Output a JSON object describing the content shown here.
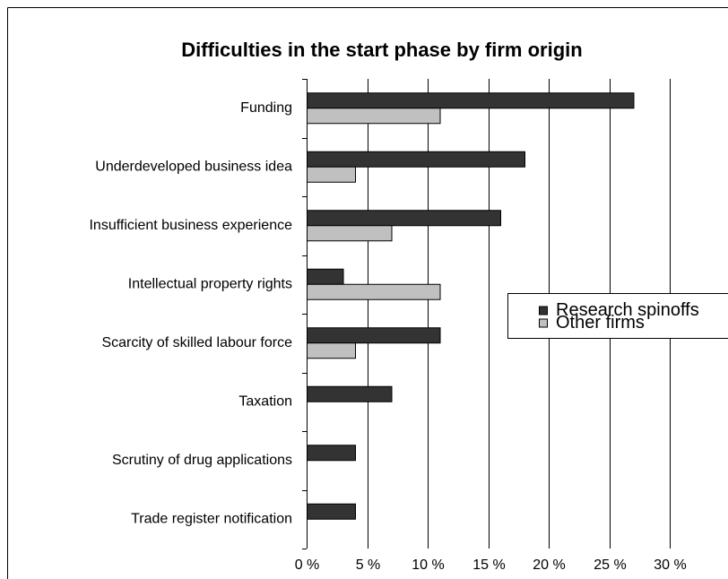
{
  "chart_data": {
    "type": "barh",
    "title": "Difficulties in the start phase by firm origin",
    "categories": [
      "Funding",
      "Underdeveloped business idea",
      "Insufficient business experience",
      "Intellectual property rights",
      "Scarcity of skilled labour force",
      "Taxation",
      "Scrutiny of drug applications",
      "Trade register notification"
    ],
    "series": [
      {
        "name": "Research spinoffs",
        "color": "#333333",
        "values": [
          27,
          18,
          16,
          3,
          11,
          7,
          4,
          4
        ]
      },
      {
        "name": "Other firms",
        "color": "#c0c0c0",
        "values": [
          11,
          4,
          7,
          11,
          4,
          0,
          0,
          0
        ]
      }
    ],
    "xlim": [
      0,
      30
    ],
    "xticks": [
      {
        "value": 0,
        "label": "0 %"
      },
      {
        "value": 5,
        "label": "5 %"
      },
      {
        "value": 10,
        "label": "10 %"
      },
      {
        "value": 15,
        "label": "15 %"
      },
      {
        "value": 20,
        "label": "20 %"
      },
      {
        "value": 25,
        "label": "25 %"
      },
      {
        "value": 30,
        "label": "30 %"
      }
    ],
    "grid": true,
    "legend": "right"
  }
}
